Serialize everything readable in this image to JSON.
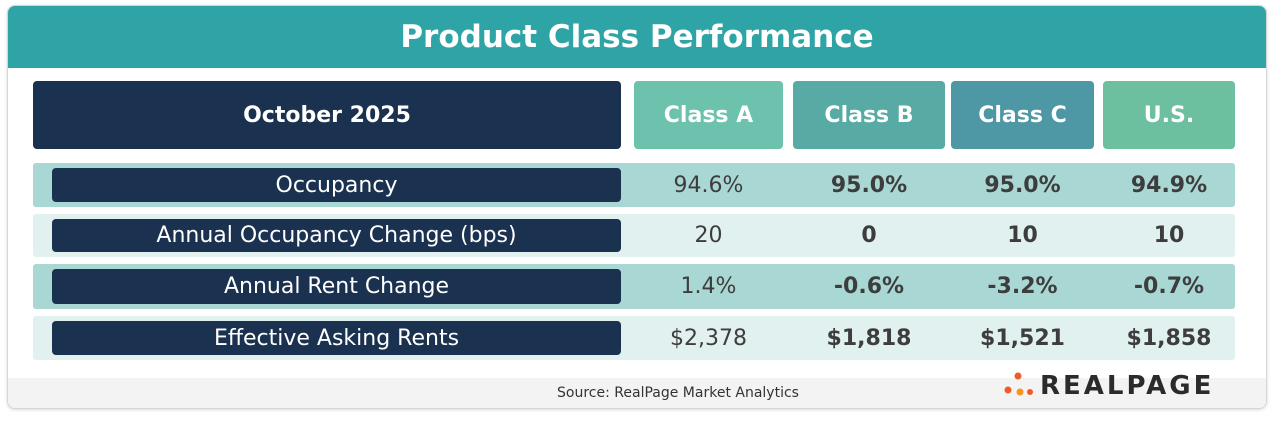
{
  "header": {
    "title": "Product Class Performance"
  },
  "table": {
    "corner": "October 2025",
    "columns": [
      "Class A",
      "Class B",
      "Class C",
      "U.S."
    ],
    "rows": [
      {
        "label": "Occupancy",
        "cells": [
          "94.6%",
          "95.0%",
          "95.0%",
          "94.9%"
        ]
      },
      {
        "label": "Annual Occupancy Change (bps)",
        "cells": [
          "20",
          "0",
          "10",
          "10"
        ]
      },
      {
        "label": "Annual Rent Change",
        "cells": [
          "1.4%",
          "-0.6%",
          "-3.2%",
          "-0.7%"
        ]
      },
      {
        "label": "Effective Asking Rents",
        "cells": [
          "$2,378",
          "$1,818",
          "$1,521",
          "$1,858"
        ]
      }
    ]
  },
  "footer": {
    "source": "Source: RealPage Market Analytics",
    "logo": "REALPAGE"
  }
}
